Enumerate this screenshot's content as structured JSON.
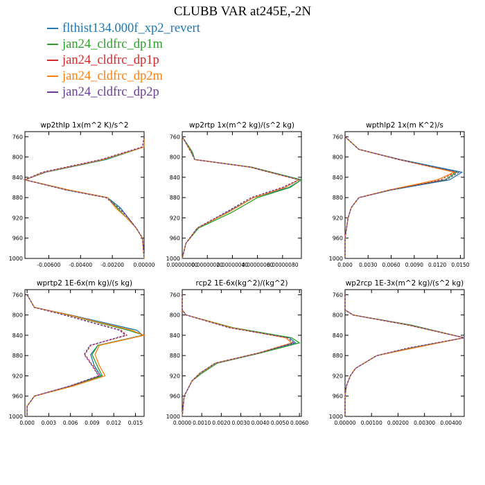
{
  "title": "CLUBB VAR at245E,-2N",
  "legend": [
    {
      "name": "flthist134.000f_xp2_revert",
      "color": "#1f77b4"
    },
    {
      "name": "jan24_cldfrc_dp1m",
      "color": "#2ca02c"
    },
    {
      "name": "jan24_cldfrc_dp1p",
      "color": "#d62728"
    },
    {
      "name": "jan24_cldfrc_dp2m",
      "color": "#ff7f0e"
    },
    {
      "name": "jan24_cldfrc_dp2p",
      "color": "#6a3d9a"
    }
  ],
  "chart_data": [
    {
      "type": "line",
      "title": "wp2thlp  1x(m^2 K)/s^2",
      "xlim": [
        -0.0075,
        0.0
      ],
      "ylim": [
        750,
        1000
      ],
      "y_inverted": true,
      "xticks": [
        -0.006,
        -0.004,
        -0.002,
        0.0
      ],
      "xtick_labels": [
        "-0.00600",
        "-0.00400",
        "-0.00200",
        "0.00000"
      ],
      "yticks": [
        760,
        800,
        840,
        880,
        920,
        960,
        1000
      ],
      "y": [
        760,
        780,
        805,
        830,
        845,
        865,
        880,
        900,
        920,
        940,
        960,
        1000
      ],
      "series": [
        {
          "name": "flthist134.000f_xp2_revert",
          "color": "#1f77b4",
          "dashed": false,
          "values": [
            0.0,
            0.0,
            -0.0024,
            -0.0062,
            -0.0075,
            -0.0048,
            -0.0023,
            -0.0015,
            -0.001,
            -0.0005,
            -0.0001,
            0.0
          ]
        },
        {
          "name": "jan24_cldfrc_dp1m",
          "color": "#2ca02c",
          "dashed": false,
          "values": [
            0.0,
            0.0,
            -0.0025,
            -0.0063,
            -0.0075,
            -0.0048,
            -0.0023,
            -0.0017,
            -0.0011,
            -0.0005,
            -0.0001,
            0.0
          ]
        },
        {
          "name": "jan24_cldfrc_dp1p",
          "color": "#d62728",
          "dashed": true,
          "values": [
            0.0,
            -0.0001,
            -0.0027,
            -0.0064,
            -0.0075,
            -0.0049,
            -0.0024,
            -0.0016,
            -0.001,
            -0.0005,
            -0.0001,
            0.0
          ]
        },
        {
          "name": "jan24_cldfrc_dp2m",
          "color": "#ff7f0e",
          "dashed": false,
          "values": [
            0.0,
            0.0,
            -0.0026,
            -0.0063,
            -0.0075,
            -0.0047,
            -0.0023,
            -0.0018,
            -0.0011,
            -0.0005,
            -0.0001,
            0.0
          ]
        },
        {
          "name": "jan24_cldfrc_dp2p",
          "color": "#6a3d9a",
          "dashed": true,
          "values": [
            0.0,
            -0.0001,
            -0.0027,
            -0.0064,
            -0.0075,
            -0.0049,
            -0.0024,
            -0.0016,
            -0.001,
            -0.0005,
            -0.0001,
            0.0
          ]
        }
      ]
    },
    {
      "type": "line",
      "title": "wp2rtp  1x(m^2 kg)/(s^2 kg)",
      "xlim": [
        0.0,
        9.5e-07
      ],
      "ylim": [
        750,
        1000
      ],
      "y_inverted": true,
      "xticks": [
        0.0,
        2e-07,
        4e-07,
        6e-07,
        8e-07
      ],
      "xtick_labels": [
        "0.00000000",
        "0.00000020",
        "0.00000040",
        "0.00000060",
        "0.00000080"
      ],
      "yticks": [
        760,
        800,
        840,
        880,
        920,
        960,
        1000
      ],
      "y": [
        760,
        790,
        805,
        820,
        845,
        860,
        880,
        910,
        940,
        970,
        1000
      ],
      "series": [
        {
          "name": "flthist134.000f_xp2_revert",
          "color": "#1f77b4",
          "dashed": false,
          "values": [
            0.0,
            8e-08,
            1e-07,
            5.5e-07,
            9.5e-07,
            8.5e-07,
            5.7e-07,
            3.5e-07,
            1.3e-07,
            3e-08,
            0.0
          ]
        },
        {
          "name": "jan24_cldfrc_dp1m",
          "color": "#2ca02c",
          "dashed": false,
          "values": [
            0.0,
            8e-08,
            1e-07,
            5.5e-07,
            9.5e-07,
            8.6e-07,
            6e-07,
            3.9e-07,
            1.3e-07,
            3e-08,
            0.0
          ]
        },
        {
          "name": "jan24_cldfrc_dp1p",
          "color": "#d62728",
          "dashed": true,
          "values": [
            0.0,
            7e-08,
            1e-07,
            5.4e-07,
            9.3e-07,
            8e-07,
            5.5e-07,
            3.4e-07,
            1.2e-07,
            3e-08,
            0.0
          ]
        },
        {
          "name": "jan24_cldfrc_dp2m",
          "color": "#ff7f0e",
          "dashed": false,
          "values": [
            0.0,
            7e-08,
            1e-07,
            5.4e-07,
            9.3e-07,
            8.2e-07,
            5.7e-07,
            3.6e-07,
            1.2e-07,
            3e-08,
            0.0
          ]
        },
        {
          "name": "jan24_cldfrc_dp2p",
          "color": "#6a3d9a",
          "dashed": true,
          "values": [
            0.0,
            7e-08,
            1e-07,
            5.4e-07,
            9.3e-07,
            8e-07,
            5.5e-07,
            3.4e-07,
            1.2e-07,
            3e-08,
            0.0
          ]
        }
      ]
    },
    {
      "type": "line",
      "title": "wpthlp2  1x(m K^2)/s",
      "xlim": [
        0.0,
        0.0155
      ],
      "ylim": [
        750,
        1000
      ],
      "y_inverted": true,
      "xticks": [
        0.0,
        0.003,
        0.006,
        0.009,
        0.012,
        0.015
      ],
      "xtick_labels": [
        "0.000",
        "0.0030",
        "0.0060",
        "0.0090",
        "0.0120",
        "0.0150"
      ],
      "yticks": [
        760,
        800,
        840,
        880,
        920,
        960,
        1000
      ],
      "y": [
        760,
        785,
        805,
        830,
        845,
        865,
        880,
        900,
        920,
        960,
        1000
      ],
      "series": [
        {
          "name": "flthist134.000f_xp2_revert",
          "color": "#1f77b4",
          "dashed": false,
          "values": [
            0.0,
            0.0018,
            0.0072,
            0.0152,
            0.0136,
            0.006,
            0.0018,
            0.0008,
            0.0004,
            0.0,
            0.0
          ]
        },
        {
          "name": "jan24_cldfrc_dp1m",
          "color": "#2ca02c",
          "dashed": false,
          "values": [
            0.0,
            0.0018,
            0.007,
            0.0145,
            0.013,
            0.0059,
            0.0018,
            0.0008,
            0.0004,
            0.0,
            0.0
          ]
        },
        {
          "name": "jan24_cldfrc_dp1p",
          "color": "#d62728",
          "dashed": true,
          "values": [
            0.0,
            0.0018,
            0.007,
            0.0143,
            0.0125,
            0.0058,
            0.0018,
            0.0008,
            0.0004,
            0.0,
            0.0
          ]
        },
        {
          "name": "jan24_cldfrc_dp2m",
          "color": "#ff7f0e",
          "dashed": false,
          "values": [
            0.0,
            0.0018,
            0.007,
            0.0142,
            0.012,
            0.0057,
            0.0018,
            0.0008,
            0.0004,
            0.0,
            0.0
          ]
        },
        {
          "name": "jan24_cldfrc_dp2p",
          "color": "#6a3d9a",
          "dashed": true,
          "values": [
            0.0,
            0.0018,
            0.007,
            0.0148,
            0.0132,
            0.0059,
            0.0018,
            0.0008,
            0.0004,
            0.0,
            0.0
          ]
        }
      ]
    },
    {
      "type": "line",
      "title": "wprtp2  1E-6x(m kg)/(s kg)",
      "xlim": [
        -0.0003,
        0.0162
      ],
      "ylim": [
        750,
        1000
      ],
      "y_inverted": true,
      "xticks": [
        0.0,
        0.003,
        0.006,
        0.009,
        0.012,
        0.015
      ],
      "xtick_labels": [
        "0.000",
        "0.003",
        "0.006",
        "0.009",
        "0.012",
        "0.015"
      ],
      "yticks": [
        760,
        800,
        840,
        880,
        920,
        960,
        1000
      ],
      "y": [
        760,
        785,
        800,
        830,
        840,
        860,
        878,
        900,
        920,
        940,
        960,
        980,
        1000
      ],
      "series": [
        {
          "name": "flthist134.000f_xp2_revert",
          "color": "#1f77b4",
          "dashed": false,
          "values": [
            0.0,
            0.001,
            0.006,
            0.0152,
            0.016,
            0.0098,
            0.0088,
            0.0093,
            0.0102,
            0.006,
            0.001,
            0.0,
            0.0
          ]
        },
        {
          "name": "jan24_cldfrc_dp1m",
          "color": "#2ca02c",
          "dashed": false,
          "values": [
            0.0,
            0.001,
            0.0057,
            0.014,
            0.0162,
            0.0098,
            0.009,
            0.0097,
            0.0104,
            0.0062,
            0.001,
            0.0,
            0.0
          ]
        },
        {
          "name": "jan24_cldfrc_dp1p",
          "color": "#d62728",
          "dashed": true,
          "values": [
            0.0,
            0.001,
            0.0052,
            0.013,
            0.0138,
            0.0088,
            0.008,
            0.0091,
            0.01,
            0.006,
            0.001,
            0.0,
            0.0
          ]
        },
        {
          "name": "jan24_cldfrc_dp2m",
          "color": "#ff7f0e",
          "dashed": false,
          "values": [
            0.0,
            0.001,
            0.0058,
            0.0145,
            0.0162,
            0.01,
            0.0094,
            0.01,
            0.0108,
            0.0064,
            0.001,
            0.0,
            0.0
          ]
        },
        {
          "name": "jan24_cldfrc_dp2p",
          "color": "#6a3d9a",
          "dashed": true,
          "values": [
            0.0,
            0.001,
            0.0051,
            0.0128,
            0.0136,
            0.0087,
            0.0079,
            0.009,
            0.0099,
            0.0059,
            0.001,
            0.0,
            0.0
          ]
        }
      ]
    },
    {
      "type": "line",
      "title": "rcp2  1E-6x(kg^2)/(kg^2)",
      "xlim": [
        0.0,
        0.0061
      ],
      "ylim": [
        750,
        1000
      ],
      "y_inverted": true,
      "xticks": [
        0.0,
        0.001,
        0.002,
        0.003,
        0.004,
        0.005,
        0.006
      ],
      "xtick_labels": [
        "0.0000",
        "0.0010",
        "0.0020",
        "0.0030",
        "0.0040",
        "0.0050",
        "0.0060"
      ],
      "yticks": [
        760,
        800,
        840,
        880,
        920,
        960,
        1000
      ],
      "y": [
        760,
        790,
        800,
        825,
        845,
        855,
        875,
        895,
        915,
        930,
        960,
        1000
      ],
      "series": [
        {
          "name": "flthist134.000f_xp2_revert",
          "color": "#1f77b4",
          "dashed": false,
          "values": [
            0.0,
            0.0,
            0.0002,
            0.0025,
            0.0055,
            0.0058,
            0.004,
            0.0017,
            0.0009,
            0.0005,
            0.0001,
            0.0
          ]
        },
        {
          "name": "jan24_cldfrc_dp1m",
          "color": "#2ca02c",
          "dashed": false,
          "values": [
            0.0,
            0.0,
            0.0002,
            0.0026,
            0.0056,
            0.006,
            0.004,
            0.0018,
            0.001,
            0.0005,
            0.0001,
            0.0
          ]
        },
        {
          "name": "jan24_cldfrc_dp1p",
          "color": "#d62728",
          "dashed": true,
          "values": [
            0.0,
            0.0,
            0.0002,
            0.0024,
            0.0054,
            0.0057,
            0.0039,
            0.0017,
            0.0009,
            0.0005,
            0.0001,
            0.0
          ]
        },
        {
          "name": "jan24_cldfrc_dp2m",
          "color": "#ff7f0e",
          "dashed": false,
          "values": [
            0.0,
            0.0,
            0.0002,
            0.0025,
            0.0053,
            0.0056,
            0.0039,
            0.0017,
            0.0009,
            0.0005,
            0.0001,
            0.0
          ]
        },
        {
          "name": "jan24_cldfrc_dp2p",
          "color": "#6a3d9a",
          "dashed": true,
          "values": [
            0.0,
            0.0,
            0.0002,
            0.0024,
            0.0054,
            0.0057,
            0.0039,
            0.0017,
            0.0009,
            0.0005,
            0.0001,
            0.0
          ]
        }
      ]
    },
    {
      "type": "line",
      "title": "wp2rcp  1E-3x(m^2 kg)/(s^2 kg)",
      "xlim": [
        0.0,
        0.0045
      ],
      "ylim": [
        750,
        1000
      ],
      "y_inverted": true,
      "xticks": [
        0.0,
        0.001,
        0.002,
        0.003,
        0.004
      ],
      "xtick_labels": [
        "0.00000",
        "0.00100",
        "0.00200",
        "0.00300",
        "0.00400"
      ],
      "yticks": [
        760,
        800,
        840,
        880,
        920,
        960,
        1000
      ],
      "y": [
        760,
        790,
        800,
        820,
        845,
        865,
        880,
        905,
        920,
        940,
        960,
        1000
      ],
      "series": [
        {
          "name": "flthist134.000f_xp2_revert",
          "color": "#1f77b4",
          "dashed": false,
          "values": [
            0.0,
            0.0,
            0.0003,
            0.0025,
            0.0045,
            0.0025,
            0.0012,
            0.0004,
            0.0002,
            5e-05,
            0.0,
            0.0
          ]
        },
        {
          "name": "jan24_cldfrc_dp1m",
          "color": "#2ca02c",
          "dashed": false,
          "values": [
            0.0,
            0.0,
            0.0003,
            0.0025,
            0.0045,
            0.0025,
            0.0012,
            0.0004,
            0.0002,
            5e-05,
            0.0,
            0.0
          ]
        },
        {
          "name": "jan24_cldfrc_dp1p",
          "color": "#d62728",
          "dashed": true,
          "values": [
            0.0,
            0.0,
            0.0003,
            0.0024,
            0.0045,
            0.0024,
            0.0012,
            0.0004,
            0.0002,
            5e-05,
            0.0,
            0.0
          ]
        },
        {
          "name": "jan24_cldfrc_dp2m",
          "color": "#ff7f0e",
          "dashed": false,
          "values": [
            0.0,
            0.0,
            0.0003,
            0.0024,
            0.0045,
            0.0026,
            0.0012,
            0.0004,
            0.0002,
            5e-05,
            0.0,
            0.0
          ]
        },
        {
          "name": "jan24_cldfrc_dp2p",
          "color": "#6a3d9a",
          "dashed": true,
          "values": [
            0.0,
            0.0,
            0.0003,
            0.0024,
            0.0045,
            0.0024,
            0.0012,
            0.0004,
            0.0002,
            5e-05,
            0.0,
            0.0
          ]
        }
      ]
    }
  ]
}
